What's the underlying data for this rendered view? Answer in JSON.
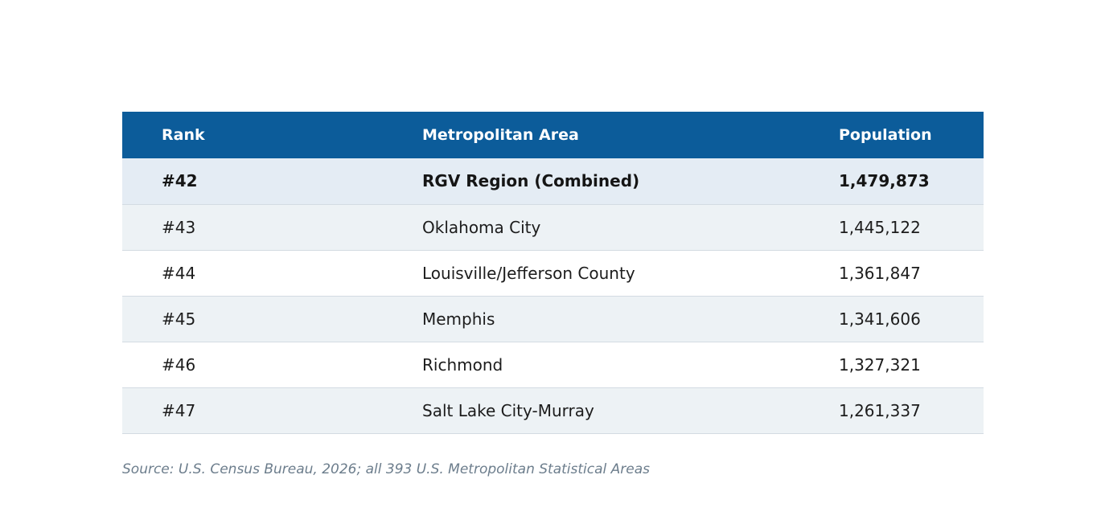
{
  "table": {
    "headers": {
      "rank": "Rank",
      "area": "Metropolitan Area",
      "population": "Population"
    },
    "rows": [
      {
        "rank": "#42",
        "area": "RGV Region (Combined)",
        "population": "1,479,873",
        "highlighted": true
      },
      {
        "rank": "#43",
        "area": "Oklahoma City",
        "population": "1,445,122",
        "highlighted": false
      },
      {
        "rank": "#44",
        "area": "Louisville/Jefferson County",
        "population": "1,361,847",
        "highlighted": false
      },
      {
        "rank": "#45",
        "area": "Memphis",
        "population": "1,341,606",
        "highlighted": false
      },
      {
        "rank": "#46",
        "area": "Richmond",
        "population": "1,327,321",
        "highlighted": false
      },
      {
        "rank": "#47",
        "area": "Salt Lake City-Murray",
        "population": "1,261,337",
        "highlighted": false
      }
    ]
  },
  "source": "Source: U.S. Census Bureau, 2026; all 393 U.S. Metropolitan Statistical Areas",
  "colors": {
    "header_bg": "#0c5c9a",
    "highlight_row": "#e4ecf4",
    "alt_row": "#edf2f5"
  }
}
